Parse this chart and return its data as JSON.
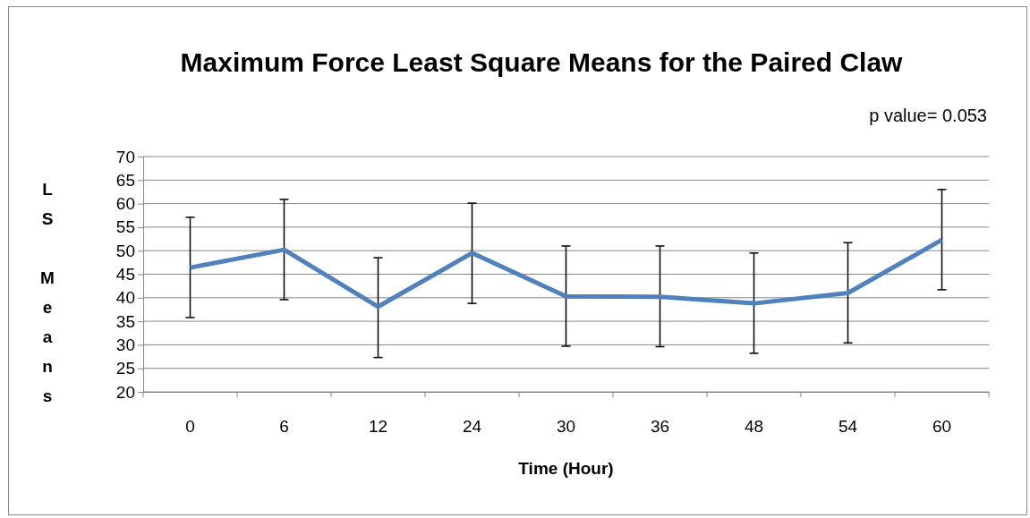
{
  "chart_data": {
    "type": "line",
    "title": "Maximum Force Least Square Means for the Paired Claw",
    "xlabel": "Time (Hour)",
    "ylabel": "LS Means",
    "annotations": [
      "p value= 0.053"
    ],
    "categories": [
      "0",
      "6",
      "12",
      "24",
      "30",
      "36",
      "48",
      "54",
      "60"
    ],
    "series": [
      {
        "color": "#4f81bd",
        "values": [
          46.4,
          50.2,
          38.1,
          49.5,
          40.3,
          40.2,
          38.8,
          41,
          52.3
        ],
        "errors": [
          [
            35.8,
            57.1
          ],
          [
            39.6,
            60.9
          ],
          [
            27.3,
            48.5
          ],
          [
            38.8,
            60.1
          ],
          [
            29.7,
            51
          ],
          [
            29.6,
            51
          ],
          [
            28.2,
            49.5
          ],
          [
            30.4,
            51.7
          ],
          [
            41.7,
            63
          ]
        ]
      }
    ],
    "ylim": [
      20,
      70
    ],
    "yticks": [
      20,
      25,
      30,
      35,
      40,
      45,
      50,
      55,
      60,
      65,
      70
    ],
    "grid": "y",
    "marker": "none",
    "line_style": "solid"
  }
}
